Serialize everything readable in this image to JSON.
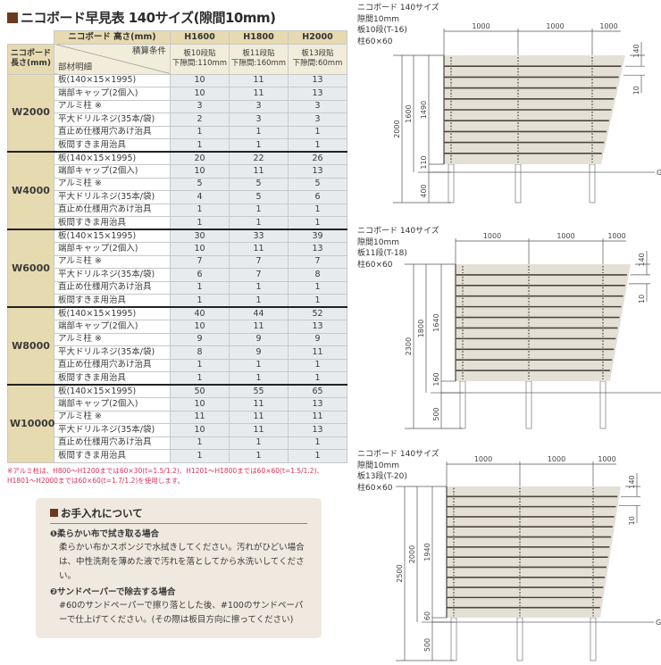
{
  "title": "ニコボード早見表 140サイズ(隙間10mm)",
  "table": {
    "corner_top": "ニコボード 高さ(mm)",
    "corner_left": "ニコボード\n長さ(mm)",
    "cond_label": "積算条件",
    "parts_label": "部材明細",
    "columns": [
      {
        "h": "H1600",
        "c1": "板10段貼",
        "c2": "下隙間:110mm"
      },
      {
        "h": "H1800",
        "c1": "板11段貼",
        "c2": "下隙間:160mm"
      },
      {
        "h": "H2000",
        "c1": "板13段貼",
        "c2": "下隙間:60mm"
      }
    ],
    "items": [
      "板(140×15×1995)",
      "端部キャップ(2個入)",
      "アルミ柱 ※",
      "平大ドリルネジ(35本/袋)",
      "直止め仕様用穴あけ治具",
      "板間すきま用治具"
    ],
    "groups": [
      {
        "size": "W2000",
        "rows": [
          [
            "10",
            "11",
            "13"
          ],
          [
            "10",
            "11",
            "13"
          ],
          [
            "3",
            "3",
            "3"
          ],
          [
            "2",
            "3",
            "3"
          ],
          [
            "1",
            "1",
            "1"
          ],
          [
            "1",
            "1",
            "1"
          ]
        ]
      },
      {
        "size": "W4000",
        "rows": [
          [
            "20",
            "22",
            "26"
          ],
          [
            "10",
            "11",
            "13"
          ],
          [
            "5",
            "5",
            "5"
          ],
          [
            "4",
            "5",
            "6"
          ],
          [
            "1",
            "1",
            "1"
          ],
          [
            "1",
            "1",
            "1"
          ]
        ]
      },
      {
        "size": "W6000",
        "rows": [
          [
            "30",
            "33",
            "39"
          ],
          [
            "10",
            "11",
            "13"
          ],
          [
            "7",
            "7",
            "7"
          ],
          [
            "6",
            "7",
            "8"
          ],
          [
            "1",
            "1",
            "1"
          ],
          [
            "1",
            "1",
            "1"
          ]
        ]
      },
      {
        "size": "W8000",
        "rows": [
          [
            "40",
            "44",
            "52"
          ],
          [
            "10",
            "11",
            "13"
          ],
          [
            "9",
            "9",
            "9"
          ],
          [
            "8",
            "9",
            "11"
          ],
          [
            "1",
            "1",
            "1"
          ],
          [
            "1",
            "1",
            "1"
          ]
        ]
      },
      {
        "size": "W10000",
        "rows": [
          [
            "50",
            "55",
            "65"
          ],
          [
            "10",
            "11",
            "13"
          ],
          [
            "11",
            "11",
            "11"
          ],
          [
            "10",
            "11",
            "13"
          ],
          [
            "1",
            "1",
            "1"
          ],
          [
            "1",
            "1",
            "1"
          ]
        ]
      }
    ]
  },
  "note": "※アルミ柱は、H800〜H1200までは60×30(t=1.5/1.2)、H1201〜H1800までは60×60(t=1.5/1.2)、H1801〜H2000までは60×60(t=1.7/1.2)を使用します。",
  "care": {
    "title": "お手入れについて",
    "s1_title": "❶柔らかい布で拭き取る場合",
    "s1_body": "柔らかい布かスポンジで水拭きしてください。汚れがひどい場合は、中性洗剤を薄めた液で汚れを落としてから水洗いしてください。",
    "s2_title": "❷サンドペーパーで除去する場合",
    "s2_body": "#60のサンドペーパーで擦り落とした後、#100のサンドペーパーで仕上げてください。(その際は板目方向に擦ってください)"
  },
  "diagrams": [
    {
      "l1": "ニコボード 140サイズ",
      "l2": "隙間10mm",
      "l3": "板10段(T-16)",
      "l4": "柱60×60",
      "boards": 10,
      "total": "2000",
      "height": "1600",
      "panel": "1490",
      "bottom": "110",
      "buried": "400",
      "span": [
        "1000",
        "1000",
        "1000"
      ],
      "board_w": "140",
      "gap": "10",
      "gl": "GL"
    },
    {
      "l1": "ニコボード 140サイズ",
      "l2": "隙間10mm",
      "l3": "板11段(T-18)",
      "l4": "柱60×60",
      "boards": 11,
      "total": "2300",
      "height": "1800",
      "panel": "1640",
      "bottom": "160",
      "buried": "500",
      "span": [
        "1000",
        "1000",
        "1000"
      ],
      "board_w": "140",
      "gap": "10",
      "gl": "GL"
    },
    {
      "l1": "ニコボード 140サイズ",
      "l2": "隙間10mm",
      "l3": "板13段(T-20)",
      "l4": "柱60×60",
      "boards": 13,
      "total": "2500",
      "height": "2000",
      "panel": "1940",
      "bottom": "60",
      "buried": "500",
      "span": [
        "1000",
        "1000",
        "1000"
      ],
      "board_w": "140",
      "gap": "10",
      "gl": "GL"
    }
  ],
  "colors": {
    "brand": "#6b3a1e",
    "header": "#e6dab0",
    "note": "#d8325a",
    "board": "#e4e0d6"
  }
}
